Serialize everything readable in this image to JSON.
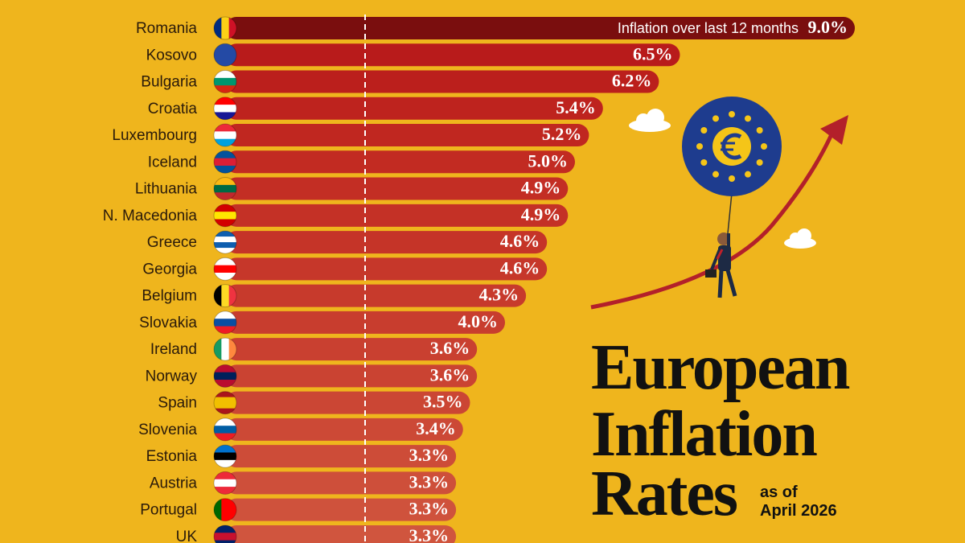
{
  "chart_data": {
    "type": "bar",
    "orientation": "horizontal",
    "title_lines": [
      "European",
      "Inflation",
      "Rates"
    ],
    "subtitle_lines": [
      "as of",
      "April 2026"
    ],
    "annotation": "Inflation over last 12 months",
    "categories": [
      "Romania",
      "Kosovo",
      "Bulgaria",
      "Croatia",
      "Luxembourg",
      "Iceland",
      "Lithuania",
      "N. Macedonia",
      "Greece",
      "Georgia",
      "Belgium",
      "Slovakia",
      "Ireland",
      "Norway",
      "Spain",
      "Slovenia",
      "Estonia",
      "Austria",
      "Portugal",
      "UK"
    ],
    "values": [
      9.0,
      6.5,
      6.2,
      5.4,
      5.2,
      5.0,
      4.9,
      4.9,
      4.6,
      4.6,
      4.3,
      4.0,
      3.6,
      3.6,
      3.5,
      3.4,
      3.3,
      3.3,
      3.3,
      3.3
    ],
    "value_labels": [
      "9.0%",
      "6.5%",
      "6.2%",
      "5.4%",
      "5.2%",
      "5.0%",
      "4.9%",
      "4.9%",
      "4.6%",
      "4.6%",
      "4.3%",
      "4.0%",
      "3.6%",
      "3.6%",
      "3.5%",
      "3.4%",
      "3.3%",
      "3.3%",
      "3.3%",
      "3.3%"
    ],
    "colors": [
      "#7a0e0e",
      "#b81b1b",
      "#bb1f1c",
      "#be231e",
      "#c02720",
      "#c22b22",
      "#c32e24",
      "#c43126",
      "#c53428",
      "#c6372a",
      "#c73a2c",
      "#c83d2e",
      "#c94030",
      "#ca4332",
      "#cb4634",
      "#cc4936",
      "#cd4c38",
      "#ce4f3a",
      "#cf523c",
      "#d0553e"
    ],
    "reference_line": 2,
    "xlim": [
      0,
      10
    ]
  }
}
